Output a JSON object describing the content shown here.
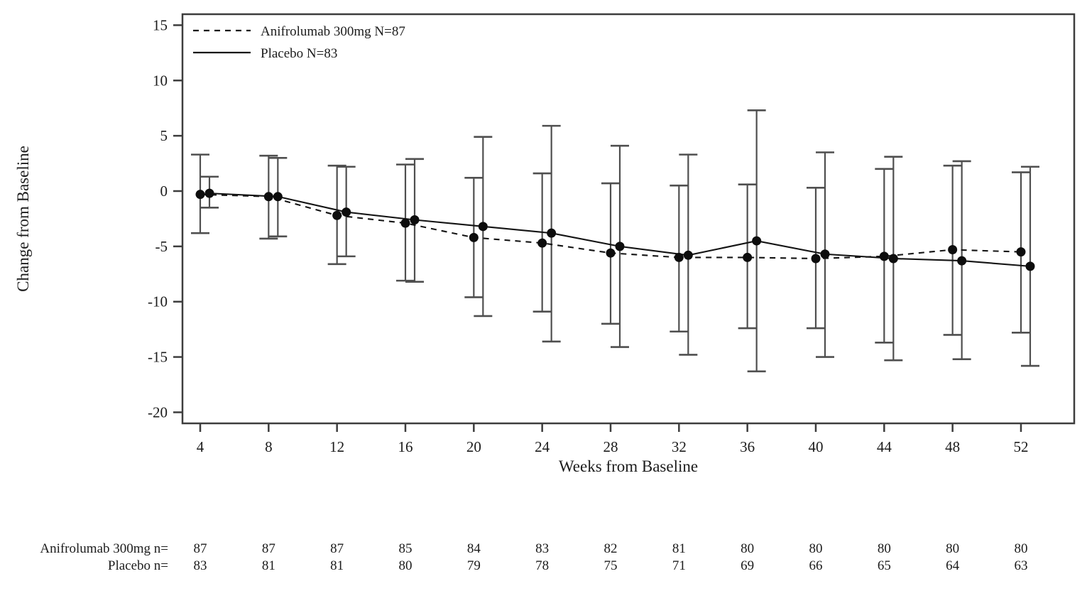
{
  "chart_data": {
    "type": "line",
    "title": "",
    "xlabel": "Weeks from Baseline",
    "ylabel": "Change from Baseline",
    "x_ticks": [
      4,
      8,
      12,
      16,
      20,
      24,
      28,
      32,
      36,
      40,
      44,
      48,
      52
    ],
    "y_ticks": [
      15,
      10,
      5,
      0,
      -5,
      -10,
      -15,
      -20
    ],
    "xlim": [
      3,
      55
    ],
    "ylim": [
      -21,
      16
    ],
    "grid": false,
    "error_bars": true,
    "legend_position": "top-left",
    "marker": "filled-circle",
    "series": [
      {
        "name": "Anifrolumab 300mg N=87",
        "line_style": "dashed",
        "color": "#141414",
        "x": [
          4,
          8,
          12,
          16,
          20,
          24,
          28,
          32,
          36,
          40,
          44,
          48,
          52
        ],
        "y": [
          -0.3,
          -0.5,
          -2.2,
          -2.9,
          -4.2,
          -4.7,
          -5.6,
          -6.0,
          -6.0,
          -6.1,
          -5.9,
          -5.3,
          -5.5
        ],
        "err_low": [
          -3.8,
          -4.3,
          -6.6,
          -8.1,
          -9.6,
          -10.9,
          -12.0,
          -12.7,
          -12.4,
          -12.4,
          -13.7,
          -13.0,
          -12.8
        ],
        "err_high": [
          3.3,
          3.2,
          2.3,
          2.4,
          1.2,
          1.6,
          0.7,
          0.5,
          0.6,
          0.3,
          2.0,
          2.3,
          1.7
        ]
      },
      {
        "name": "Placebo N=83",
        "line_style": "solid",
        "color": "#141414",
        "x": [
          4,
          8,
          12,
          16,
          20,
          24,
          28,
          32,
          36,
          40,
          44,
          48,
          52
        ],
        "y": [
          -0.2,
          -0.5,
          -1.9,
          -2.6,
          -3.2,
          -3.8,
          -5.0,
          -5.8,
          -4.5,
          -5.7,
          -6.1,
          -6.3,
          -6.8
        ],
        "err_low": [
          -1.5,
          -4.1,
          -5.9,
          -8.2,
          -11.3,
          -13.6,
          -14.1,
          -14.8,
          -16.3,
          -15.0,
          -15.3,
          -15.2,
          -15.8
        ],
        "err_high": [
          1.3,
          3.0,
          2.2,
          2.9,
          4.9,
          5.9,
          4.1,
          3.3,
          7.3,
          3.5,
          3.1,
          2.7,
          2.2
        ]
      }
    ],
    "at_risk_table": {
      "rows": [
        {
          "label": "Anifrolumab 300mg n=",
          "values": [
            87,
            87,
            87,
            85,
            84,
            83,
            82,
            81,
            80,
            80,
            80,
            80,
            80
          ]
        },
        {
          "label": "Placebo n=",
          "values": [
            83,
            81,
            81,
            80,
            79,
            78,
            75,
            71,
            69,
            66,
            65,
            64,
            63
          ]
        }
      ]
    }
  },
  "colors": {
    "background": "#ffffff",
    "axis": "#3d3d3d",
    "error_bar": "#4f4f4f",
    "marker": "#0d0d0d",
    "text": "#1c1c1c"
  }
}
